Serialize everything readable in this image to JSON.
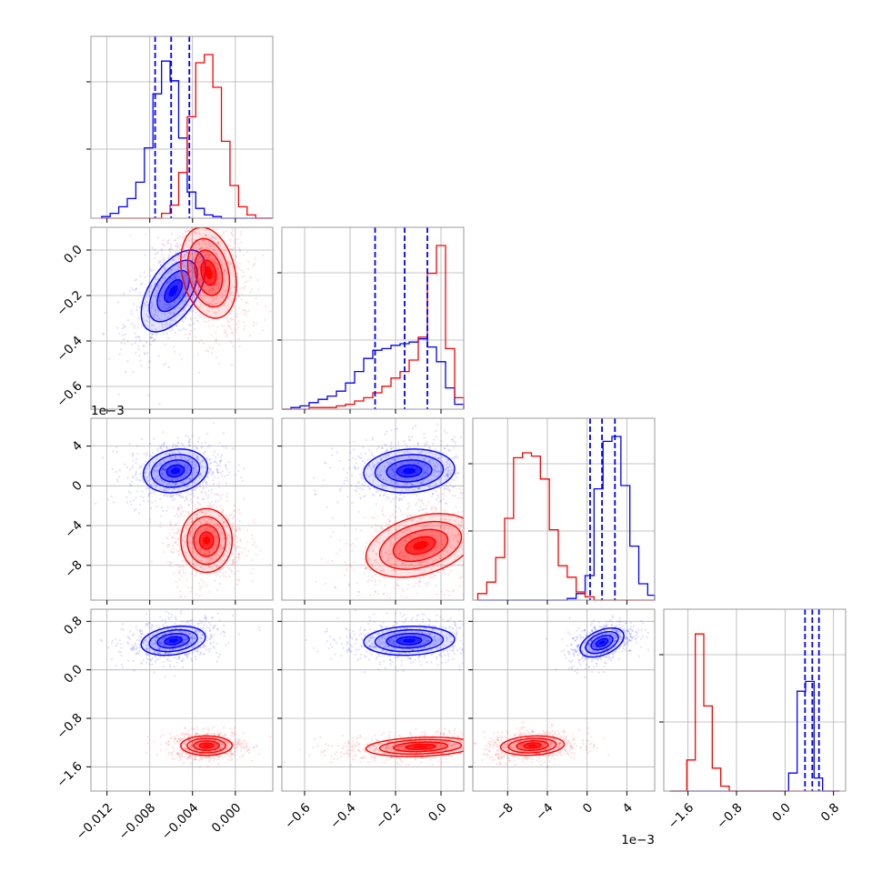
{
  "chart_data": {
    "type": "corner",
    "colors": {
      "blue": "#0000ff",
      "red": "#ff0000",
      "grid": "#b0b0b0",
      "frame": "#9a9a9a"
    },
    "grid": true,
    "parameters": [
      {
        "range": [
          -0.0135,
          0.0035
        ],
        "ticks": [
          -0.012,
          -0.008,
          -0.004,
          0.0
        ],
        "tick_labels": [
          "−0.012",
          "−0.008",
          "−0.004",
          "0.000"
        ],
        "offset_label": ""
      },
      {
        "range": [
          -0.7,
          0.1
        ],
        "ticks": [
          -0.6,
          -0.4,
          -0.2,
          0.0
        ],
        "tick_labels": [
          "−0.6",
          "−0.4",
          "−0.2",
          "0.0"
        ],
        "offset_label": ""
      },
      {
        "range": [
          -0.0115,
          0.0068
        ],
        "ticks": [
          -0.008,
          -0.004,
          0.0,
          0.004
        ],
        "tick_labels": [
          "−8",
          "−4",
          "0",
          "4"
        ],
        "offset_label": "1e−3"
      },
      {
        "range": [
          -2.0,
          1.0
        ],
        "ticks": [
          -1.6,
          -0.8,
          0.0,
          0.8
        ],
        "tick_labels": [
          "−1.6",
          "−0.8",
          "0.0",
          "0.8"
        ],
        "offset_label": ""
      }
    ],
    "diagonal": [
      {
        "quantiles_blue": [
          -0.0075,
          -0.006,
          -0.0043
        ],
        "blue_bins": {
          "start": -0.0125,
          "width": 0.0008,
          "counts": [
            0.01,
            0.03,
            0.07,
            0.12,
            0.22,
            0.43,
            0.76,
            0.96,
            0.84,
            0.49,
            0.16,
            0.06,
            0.02,
            0.01,
            0.0,
            0.0,
            0.0,
            0.0,
            0.0,
            0.0
          ]
        },
        "red_bins": {
          "start": -0.0125,
          "width": 0.0008,
          "counts": [
            0.0,
            0.0,
            0.0,
            0.0,
            0.0,
            0.0,
            0.0,
            0.03,
            0.08,
            0.28,
            0.62,
            0.95,
            1.0,
            0.8,
            0.47,
            0.2,
            0.07,
            0.02,
            0.0,
            0.0
          ]
        }
      },
      {
        "quantiles_blue": [
          -0.29,
          -0.16,
          -0.06
        ],
        "blue_bins": {
          "start": -0.7,
          "width": 0.04,
          "counts": [
            0.0,
            0.01,
            0.02,
            0.04,
            0.06,
            0.08,
            0.11,
            0.16,
            0.23,
            0.31,
            0.36,
            0.37,
            0.39,
            0.4,
            0.41,
            0.43,
            0.38,
            0.29,
            0.13,
            0.03
          ]
        },
        "red_bins": {
          "start": -0.7,
          "width": 0.04,
          "counts": [
            0.0,
            0.0,
            0.0,
            0.01,
            0.01,
            0.01,
            0.02,
            0.03,
            0.05,
            0.07,
            0.1,
            0.14,
            0.19,
            0.23,
            0.3,
            0.44,
            0.83,
            1.0,
            0.37,
            0.07
          ]
        }
      },
      {
        "quantiles_blue": [
          0.0003,
          0.0015,
          0.0028
        ],
        "blue_bins": {
          "start": -0.011,
          "width": 0.0009,
          "counts": [
            0.0,
            0.0,
            0.0,
            0.0,
            0.0,
            0.0,
            0.0,
            0.0,
            0.0,
            0.0,
            0.01,
            0.04,
            0.15,
            0.68,
            0.97,
            1.0,
            0.7,
            0.33,
            0.1,
            0.03
          ]
        },
        "red_bins": {
          "start": -0.011,
          "width": 0.0009,
          "counts": [
            0.04,
            0.11,
            0.26,
            0.5,
            0.87,
            0.9,
            0.88,
            0.74,
            0.43,
            0.21,
            0.14,
            0.05,
            0.02,
            0.0,
            0.0,
            0.0,
            0.0,
            0.0,
            0.0,
            0.0
          ]
        }
      },
      {
        "quantiles_blue": [
          0.33,
          0.45,
          0.56
        ],
        "blue_bins": {
          "start": -1.9,
          "width": 0.14,
          "counts": [
            0.0,
            0.0,
            0.0,
            0.0,
            0.0,
            0.0,
            0.0,
            0.0,
            0.0,
            0.0,
            0.0,
            0.0,
            0.0,
            0.0,
            0.11,
            0.61,
            0.67,
            0.08,
            0.0,
            0.0
          ]
        },
        "red_bins": {
          "start": -1.9,
          "width": 0.14,
          "counts": [
            0.0,
            0.0,
            0.19,
            0.96,
            0.52,
            0.14,
            0.03,
            0.0,
            0.0,
            0.0,
            0.0,
            0.0,
            0.0,
            0.0,
            0.0,
            0.0,
            0.0,
            0.0,
            0.0,
            0.0
          ]
        }
      }
    ],
    "pairs": [
      {
        "i": 1,
        "j": 0,
        "blue": {
          "mean": [
            -0.0058,
            -0.18
          ],
          "sd": [
            0.0015,
            0.09
          ],
          "rho": 0.55
        },
        "red": {
          "mean": [
            -0.0025,
            -0.1
          ],
          "sd": [
            0.0013,
            0.1
          ],
          "rho": -0.25
        }
      },
      {
        "i": 2,
        "j": 0,
        "blue": {
          "mean": [
            -0.0056,
            0.0015
          ],
          "sd": [
            0.0015,
            0.0011
          ],
          "rho": 0.15
        },
        "red": {
          "mean": [
            -0.0027,
            -0.0055
          ],
          "sd": [
            0.0012,
            0.0016
          ],
          "rho": 0.0
        }
      },
      {
        "i": 2,
        "j": 1,
        "blue": {
          "mean": [
            -0.14,
            0.0015
          ],
          "sd": [
            0.1,
            0.0011
          ],
          "rho": 0.1
        },
        "red": {
          "mean": [
            -0.09,
            -0.006
          ],
          "sd": [
            0.12,
            0.0016
          ],
          "rho": 0.35
        }
      },
      {
        "i": 3,
        "j": 0,
        "blue": {
          "mean": [
            -0.0058,
            0.48
          ],
          "sd": [
            0.0015,
            0.12
          ],
          "rho": 0.25
        },
        "red": {
          "mean": [
            -0.0027,
            -1.25
          ],
          "sd": [
            0.0012,
            0.08
          ],
          "rho": 0.0
        }
      },
      {
        "i": 3,
        "j": 1,
        "blue": {
          "mean": [
            -0.14,
            0.48
          ],
          "sd": [
            0.1,
            0.12
          ],
          "rho": 0.1
        },
        "red": {
          "mean": [
            -0.09,
            -1.27
          ],
          "sd": [
            0.12,
            0.08
          ],
          "rho": 0.2
        }
      },
      {
        "i": 3,
        "j": 2,
        "blue": {
          "mean": [
            0.0015,
            0.45
          ],
          "sd": [
            0.0011,
            0.12
          ],
          "rho": 0.45
        },
        "red": {
          "mean": [
            -0.0055,
            -1.25
          ],
          "sd": [
            0.0016,
            0.08
          ],
          "rho": 0.15
        }
      }
    ]
  }
}
